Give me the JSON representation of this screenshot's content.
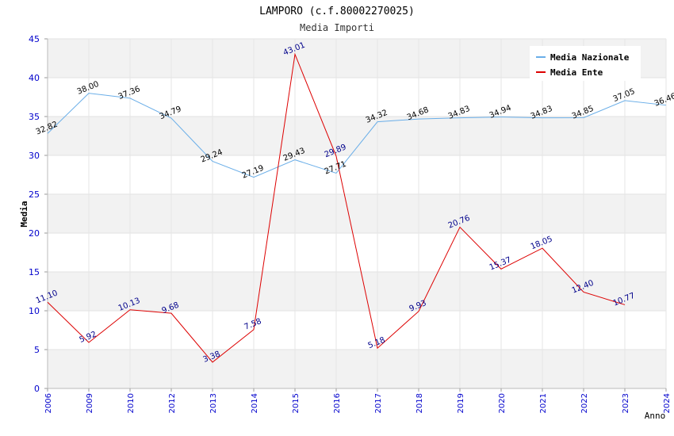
{
  "chart_data": {
    "type": "line",
    "title": "LAMPORO (c.f.80002270025)",
    "subtitle": "Media Importi",
    "xlabel": "Anno",
    "ylabel": "Media",
    "ylim": [
      0,
      45
    ],
    "yticks": [
      0,
      5,
      10,
      15,
      20,
      25,
      30,
      35,
      40,
      45
    ],
    "categories": [
      "2006",
      "2009",
      "2010",
      "2012",
      "2013",
      "2014",
      "2015",
      "2016",
      "2017",
      "2018",
      "2019",
      "2020",
      "2021",
      "2022",
      "2023",
      "2024"
    ],
    "legend_position": "top-right",
    "series": [
      {
        "name": "Media Nazionale",
        "color": "#6aaee8",
        "values": [
          32.82,
          38.0,
          37.36,
          34.79,
          29.24,
          27.19,
          29.43,
          27.71,
          34.32,
          34.68,
          34.83,
          34.94,
          34.83,
          34.85,
          37.05,
          36.46
        ],
        "labels": [
          "32.82",
          "38.00",
          "37.36",
          "34.79",
          "29.24",
          "27.19",
          "29.43",
          "27.71",
          "34.32",
          "34.68",
          "34.83",
          "34.94",
          "34.83",
          "34.85",
          "37.05",
          "36.46"
        ]
      },
      {
        "name": "Media Ente",
        "color": "#dd0000",
        "values": [
          11.1,
          5.92,
          10.13,
          9.68,
          3.38,
          7.58,
          43.01,
          29.89,
          5.18,
          9.93,
          20.76,
          15.37,
          18.05,
          12.4,
          10.77,
          null
        ],
        "labels": [
          "11.10",
          "5.92",
          "10.13",
          "9.68",
          "3.38",
          "7.58",
          "43.01",
          "29.89",
          "5.18",
          "9.93",
          "20.76",
          "15.37",
          "18.05",
          "12.40",
          "10.77",
          ""
        ]
      }
    ]
  }
}
